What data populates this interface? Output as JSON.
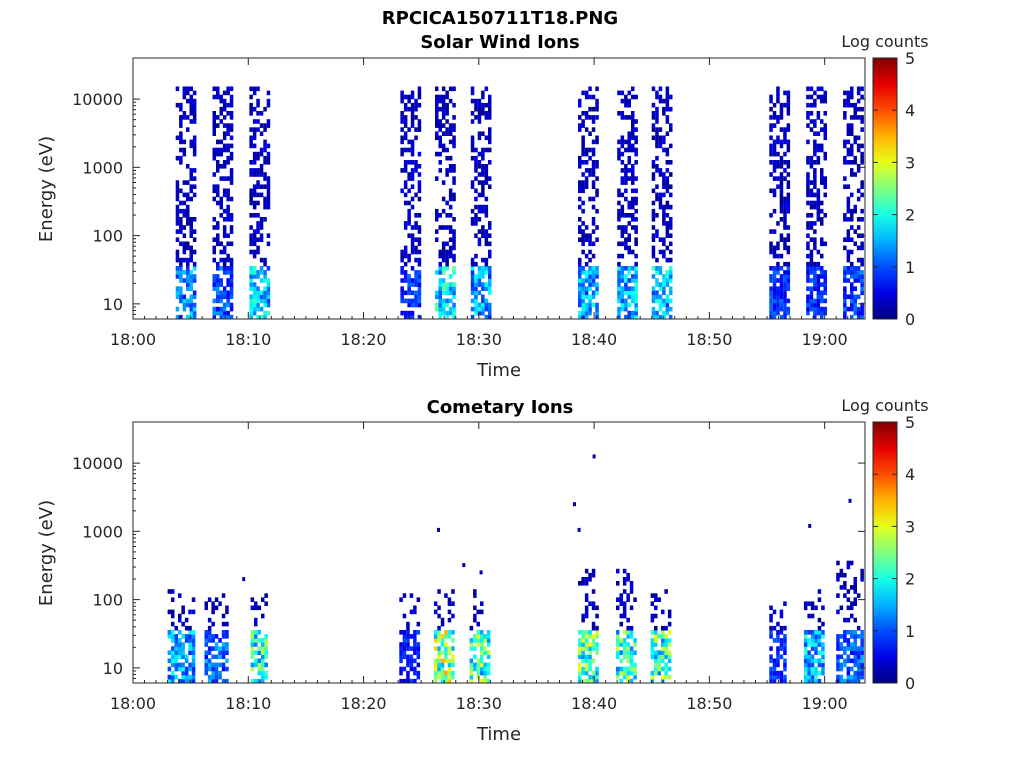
{
  "figure": {
    "file_title": "RPCICA150711T18.PNG"
  },
  "chart_data": [
    {
      "type": "heatmap",
      "title": "Solar Wind Ions",
      "xlabel": "Time",
      "ylabel": "Energy (eV)",
      "x_ticks": [
        "18:00",
        "18:10",
        "18:20",
        "18:30",
        "18:40",
        "18:50",
        "19:00"
      ],
      "x_range_minutes": [
        0,
        63.5
      ],
      "y_ticks": [
        10,
        100,
        1000,
        10000
      ],
      "y_tick_labels": [
        "10",
        "100",
        "1000",
        "10000"
      ],
      "y_scale": "log",
      "y_range": [
        6,
        40000
      ],
      "colorbar": {
        "label": "Log counts",
        "min": 0,
        "max": 5,
        "ticks": [
          "0",
          "1",
          "2",
          "3",
          "4",
          "5"
        ],
        "colormap": "jet"
      },
      "bursts": [
        {
          "start_min": 3.7,
          "end_min": 5.3,
          "e_max": 15000,
          "low_energy_peak": 1.8
        },
        {
          "start_min": 6.9,
          "end_min": 8.5,
          "e_max": 15000,
          "low_energy_peak": 1.4
        },
        {
          "start_min": 10.1,
          "end_min": 11.7,
          "e_max": 15000,
          "low_energy_peak": 2.2
        },
        {
          "start_min": 23.2,
          "end_min": 24.8,
          "e_max": 15000,
          "low_energy_peak": 1.2
        },
        {
          "start_min": 26.2,
          "end_min": 27.8,
          "e_max": 15000,
          "low_energy_peak": 2.4
        },
        {
          "start_min": 29.3,
          "end_min": 30.9,
          "e_max": 15000,
          "low_energy_peak": 2.0
        },
        {
          "start_min": 38.6,
          "end_min": 40.2,
          "e_max": 15000,
          "low_energy_peak": 2.0
        },
        {
          "start_min": 42.0,
          "end_min": 43.6,
          "e_max": 15000,
          "low_energy_peak": 2.1
        },
        {
          "start_min": 45.0,
          "end_min": 46.6,
          "e_max": 15000,
          "low_energy_peak": 2.2
        },
        {
          "start_min": 55.2,
          "end_min": 56.8,
          "e_max": 15000,
          "low_energy_peak": 1.2
        },
        {
          "start_min": 58.4,
          "end_min": 60.0,
          "e_max": 15000,
          "low_energy_peak": 1.1
        },
        {
          "start_min": 61.6,
          "end_min": 63.2,
          "e_max": 15000,
          "low_energy_peak": 1.3
        }
      ]
    },
    {
      "type": "heatmap",
      "title": "Cometary Ions",
      "xlabel": "Time",
      "ylabel": "Energy (eV)",
      "x_ticks": [
        "18:00",
        "18:10",
        "18:20",
        "18:30",
        "18:40",
        "18:50",
        "19:00"
      ],
      "x_range_minutes": [
        0,
        63.5
      ],
      "y_ticks": [
        10,
        100,
        1000,
        10000
      ],
      "y_tick_labels": [
        "10",
        "100",
        "1000",
        "10000"
      ],
      "y_scale": "log",
      "y_range": [
        6,
        40000
      ],
      "colorbar": {
        "label": "Log counts",
        "min": 0,
        "max": 5,
        "ticks": [
          "0",
          "1",
          "2",
          "3",
          "4",
          "5"
        ],
        "colormap": "jet"
      },
      "bursts": [
        {
          "start_min": 3.0,
          "end_min": 5.3,
          "e_max": 150,
          "low_energy_peak": 2.0
        },
        {
          "start_min": 6.2,
          "end_min": 8.0,
          "e_max": 120,
          "low_energy_peak": 1.6
        },
        {
          "start_min": 10.2,
          "end_min": 11.6,
          "e_max": 120,
          "low_energy_peak": 2.8
        },
        {
          "start_min": 23.1,
          "end_min": 24.7,
          "e_max": 120,
          "low_energy_peak": 1.0
        },
        {
          "start_min": 26.1,
          "end_min": 27.7,
          "e_max": 150,
          "low_energy_peak": 3.6
        },
        {
          "start_min": 29.2,
          "end_min": 30.8,
          "e_max": 150,
          "low_energy_peak": 3.0
        },
        {
          "start_min": 38.6,
          "end_min": 40.2,
          "e_max": 300,
          "low_energy_peak": 3.2
        },
        {
          "start_min": 41.9,
          "end_min": 43.5,
          "e_max": 300,
          "low_energy_peak": 3.0
        },
        {
          "start_min": 44.9,
          "end_min": 46.5,
          "e_max": 150,
          "low_energy_peak": 3.1
        },
        {
          "start_min": 55.2,
          "end_min": 56.6,
          "e_max": 100,
          "low_energy_peak": 1.1
        },
        {
          "start_min": 58.2,
          "end_min": 59.8,
          "e_max": 150,
          "low_energy_peak": 2.2
        },
        {
          "start_min": 61.0,
          "end_min": 63.2,
          "e_max": 400,
          "low_energy_peak": 1.5
        }
      ],
      "isolated_high_energy_points": [
        {
          "t_min": 26.5,
          "energy": 1050
        },
        {
          "t_min": 28.7,
          "energy": 320
        },
        {
          "t_min": 30.2,
          "energy": 250
        },
        {
          "t_min": 38.3,
          "energy": 2500
        },
        {
          "t_min": 38.7,
          "energy": 1050
        },
        {
          "t_min": 40.0,
          "energy": 12500
        },
        {
          "t_min": 58.7,
          "energy": 1200
        },
        {
          "t_min": 62.2,
          "energy": 2800
        },
        {
          "t_min": 9.6,
          "energy": 200
        }
      ]
    }
  ]
}
